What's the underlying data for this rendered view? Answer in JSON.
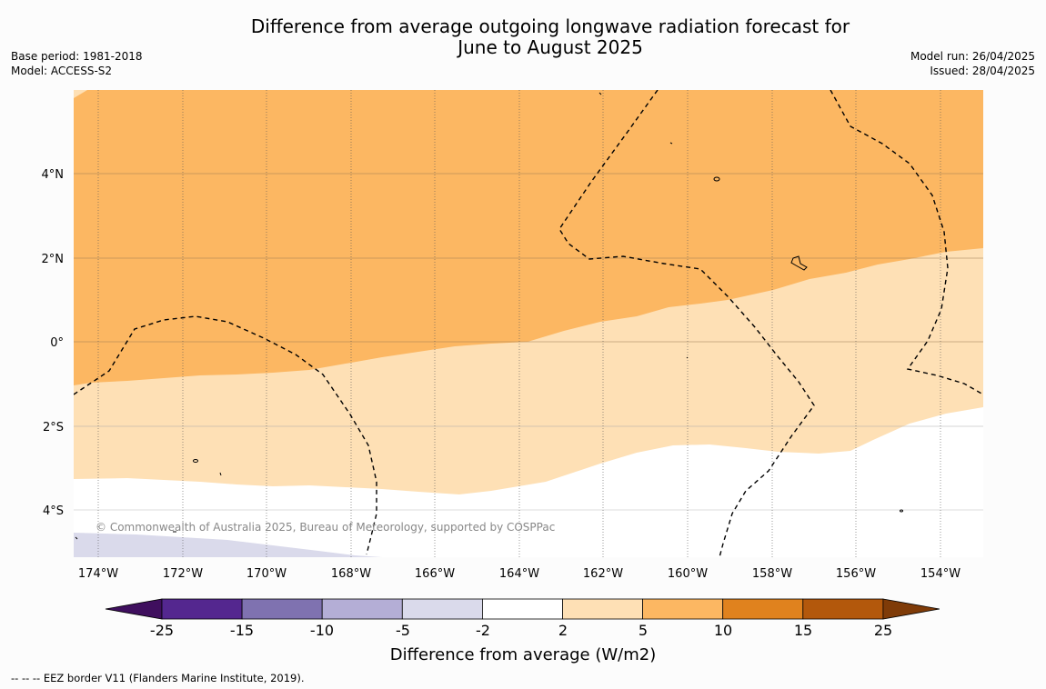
{
  "title": {
    "line1": "Difference from average outgoing longwave radiation forecast for",
    "line2": "June to August 2025"
  },
  "meta_left": {
    "base_period": "Base period: 1981-2018",
    "model": "Model: ACCESS-S2"
  },
  "meta_right": {
    "model_run": "Model run: 26/04/2025",
    "issued": "Issued: 28/04/2025"
  },
  "map": {
    "x_ticks": [
      "174°W",
      "172°W",
      "170°W",
      "168°W",
      "166°W",
      "164°W",
      "162°W",
      "160°W",
      "158°W",
      "156°W",
      "154°W"
    ],
    "y_ticks": [
      "4°N",
      "2°N",
      "0°",
      "2°S",
      "4°S"
    ],
    "copyright": "© Commonwealth of Australia 2025, Bureau of Meteorology, supported by COSPPac"
  },
  "colorbar": {
    "label": "Difference from average (W/m2)",
    "ticks": [
      "-25",
      "-15",
      "-10",
      "-5",
      "-2",
      "2",
      "5",
      "10",
      "15",
      "25"
    ],
    "colors": [
      "#3f0f5e",
      "#54278f",
      "#7f72b0",
      "#b4aed6",
      "#dadaeb",
      "#ffffff",
      "#fee0b5",
      "#fcb762",
      "#e0821e",
      "#b3580c",
      "#7f3b08"
    ]
  },
  "footnote": "--  --  -- EEZ border V11 (Flanders Marine Institute, 2019)."
}
